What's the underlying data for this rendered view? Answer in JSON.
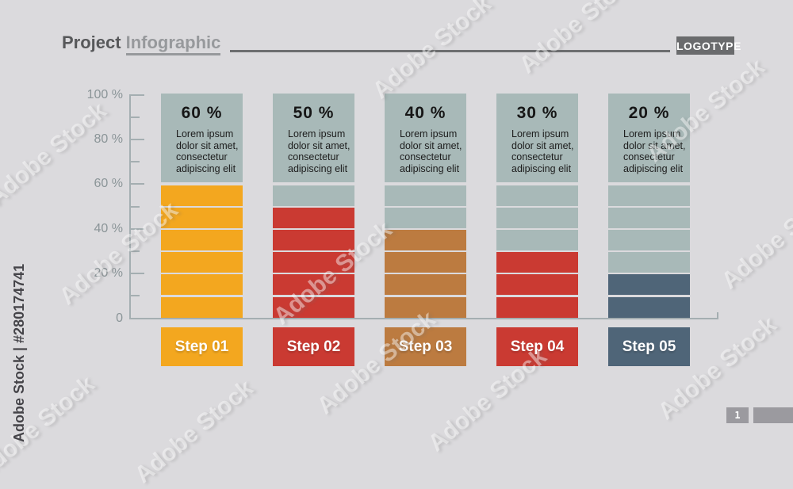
{
  "header": {
    "title_primary": "Project",
    "title_secondary": "Infographic",
    "logotype": "LOGOTYPE"
  },
  "watermark": {
    "ghost_text": "Adobe Stock",
    "side_text": "Adobe Stock | #280174741",
    "page_number": "1"
  },
  "chart_data": {
    "type": "bar",
    "title": "Project Infographic",
    "unit": "%",
    "ylim": [
      0,
      100
    ],
    "segment_size": 10,
    "grid": false,
    "y_tick_labels": [
      "100 %",
      "80 %",
      "60 %",
      "40 %",
      "20 %",
      "0"
    ],
    "y_tick_values": [
      100,
      80,
      60,
      40,
      20,
      0
    ],
    "minor_tick_values": [
      90,
      70,
      50,
      30,
      10
    ],
    "empty_color": "#a8b9b8",
    "axis_color": "#a4aeb1",
    "columns": [
      {
        "label": "Step 01",
        "value": 60,
        "value_label": "60 %",
        "color": "#f3a71f",
        "description": "Lorem ipsum dolor sit amet, consectetur adipiscing elit",
        "description_lines": [
          "Lorem ipsum",
          "dolor sit amet,",
          "consectetur",
          "adipiscing elit"
        ]
      },
      {
        "label": "Step 02",
        "value": 50,
        "value_label": "50 %",
        "color": "#ca3a32",
        "description": "Lorem ipsum dolor sit amet, consectetur adipiscing elit",
        "description_lines": [
          "Lorem ipsum",
          "dolor sit amet,",
          "consectetur",
          "adipiscing elit"
        ]
      },
      {
        "label": "Step 03",
        "value": 40,
        "value_label": "40 %",
        "color": "#bc7b40",
        "description": "Lorem ipsum dolor sit amet, consectetur adipiscing elit",
        "description_lines": [
          "Lorem ipsum",
          "dolor sit amet,",
          "consectetur",
          "adipiscing elit"
        ]
      },
      {
        "label": "Step 04",
        "value": 30,
        "value_label": "30 %",
        "color": "#ca3a32",
        "description": "Lorem ipsum dolor sit amet, consectetur adipiscing elit",
        "description_lines": [
          "Lorem ipsum",
          "dolor sit amet,",
          "consectetur",
          "adipiscing elit"
        ]
      },
      {
        "label": "Step 05",
        "value": 20,
        "value_label": "20 %",
        "color": "#4f6578",
        "description": "Lorem ipsum dolor sit amet, consectetur adipiscing elit",
        "description_lines": [
          "Lorem ipsum",
          "dolor sit amet,",
          "consectetur",
          "adipiscing elit"
        ]
      }
    ]
  }
}
